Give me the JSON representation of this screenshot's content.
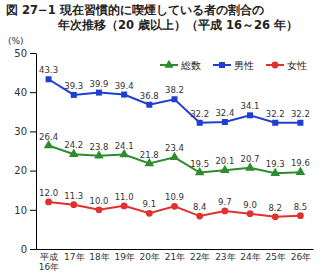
{
  "chart_data": {
    "type": "line",
    "title": [
      "図 27−1 現在習慣的に喫煙している者の割合の",
      "年次推移（20 歳以上）（平成 16～26 年）"
    ],
    "y_label": "(%)",
    "categories": [
      "平成\n16年",
      "17年",
      "18年",
      "19年",
      "20年",
      "21年",
      "22年",
      "23年",
      "24年",
      "25年",
      "26年"
    ],
    "series": [
      {
        "name": "総数",
        "color": "#2e8b2e",
        "marker": "triangle",
        "line_style": "solid",
        "values": [
          26.4,
          24.2,
          23.8,
          24.1,
          21.8,
          23.4,
          19.5,
          20.1,
          20.7,
          19.3,
          19.6
        ]
      },
      {
        "name": "男性",
        "color": "#1f3fd1",
        "marker": "square",
        "line_style": "solid",
        "values": [
          43.3,
          39.3,
          39.9,
          39.4,
          36.8,
          38.2,
          32.2,
          32.4,
          34.1,
          32.2,
          32.2
        ]
      },
      {
        "name": "女性",
        "color": "#e0302f",
        "marker": "circle",
        "line_style": "solid",
        "values": [
          12.0,
          11.3,
          10.0,
          11.0,
          9.1,
          10.9,
          8.4,
          9.7,
          9.0,
          8.2,
          8.5
        ],
        "value_labels": [
          "12.0",
          "11.3",
          "10.0",
          "11.0",
          "9.1",
          "10.9",
          "8.4",
          "9.7",
          "9.0",
          "8.2",
          "8.5"
        ]
      }
    ],
    "ylim": [
      0,
      50
    ],
    "yticks": [
      0,
      10,
      20,
      30,
      40,
      50
    ],
    "grid": false,
    "legend": "top-right",
    "data_labels": true
  }
}
